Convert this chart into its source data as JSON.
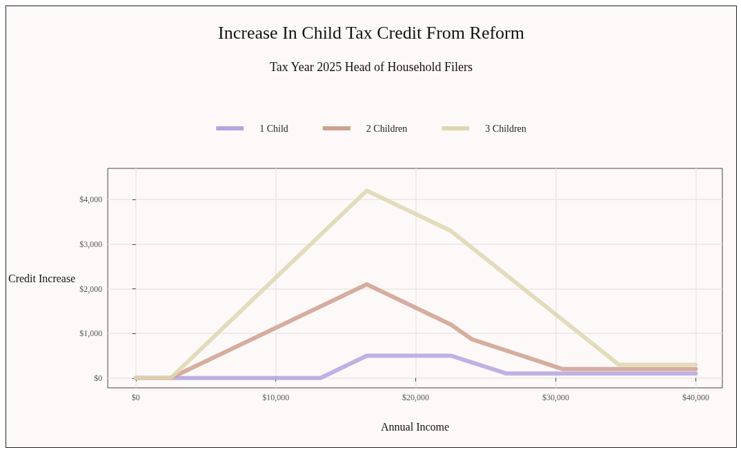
{
  "chart_data": {
    "type": "line",
    "title": "Increase In Child Tax Credit From Reform",
    "subtitle": "Tax Year 2025 Head of Household Filers",
    "xlabel": "Annual Income",
    "ylabel": "Credit Increase",
    "series": [
      {
        "name": "1 Child",
        "color": "#b3a6e0",
        "x": [
          0,
          2500,
          13200,
          16500,
          22500,
          26500,
          40000
        ],
        "values": [
          0,
          0,
          0,
          500,
          500,
          100,
          100
        ]
      },
      {
        "name": "2 Children",
        "color": "#cfa08f",
        "x": [
          0,
          2500,
          16500,
          22500,
          24000,
          30500,
          40000
        ],
        "values": [
          0,
          0,
          2100,
          1200,
          870,
          200,
          200
        ]
      },
      {
        "name": "3 Children",
        "color": "#ddd7b1",
        "x": [
          0,
          2500,
          16500,
          22500,
          34500,
          40000
        ],
        "values": [
          0,
          0,
          4200,
          3300,
          300,
          300
        ]
      }
    ],
    "xlim": [
      -2000,
      41900
    ],
    "ylim": [
      -220,
      4700
    ],
    "xticks": [
      {
        "value": 0,
        "label": "$0"
      },
      {
        "value": 10000,
        "label": "$10,000"
      },
      {
        "value": 20000,
        "label": "$20,000"
      },
      {
        "value": 30000,
        "label": "$30,000"
      },
      {
        "value": 40000,
        "label": "$40,000"
      }
    ],
    "yticks": [
      {
        "value": 0,
        "label": "$0"
      },
      {
        "value": 1000,
        "label": "$1,000"
      },
      {
        "value": 2000,
        "label": "$2,000"
      },
      {
        "value": 3000,
        "label": "$3,000"
      },
      {
        "value": 4000,
        "label": "$4,000"
      }
    ],
    "grid": true,
    "legend": "top",
    "marker": "none",
    "line_style": "solid"
  }
}
